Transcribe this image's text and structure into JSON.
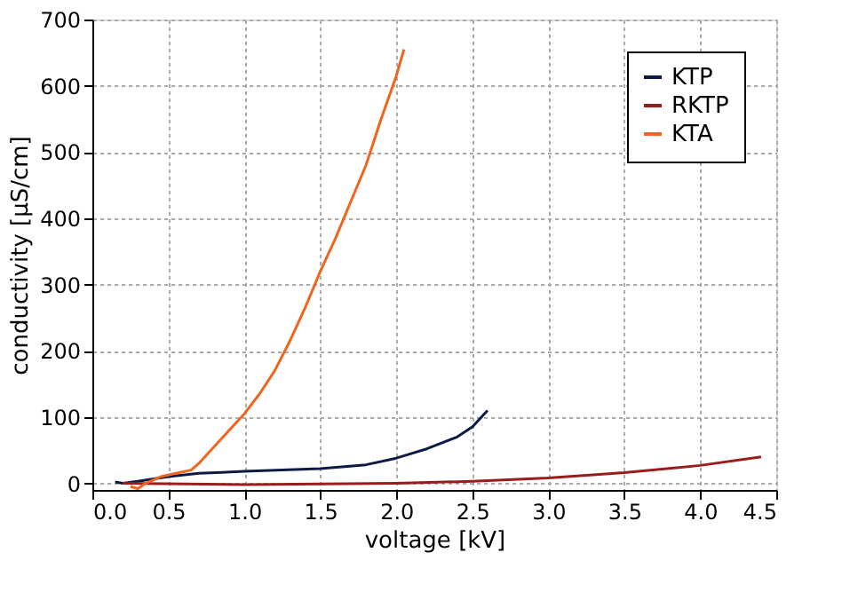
{
  "chart_data": {
    "type": "line",
    "xlabel": "voltage [kV]",
    "ylabel": "conductivity [µS/cm]",
    "xlim": [
      0,
      4.5
    ],
    "xticks": [
      {
        "value": 0,
        "label": "0.0"
      },
      {
        "value": 0.5,
        "label": "0.5"
      },
      {
        "value": 1,
        "label": "1.0"
      },
      {
        "value": 1.5,
        "label": "1.5"
      },
      {
        "value": 2,
        "label": "2.0"
      },
      {
        "value": 2.5,
        "label": "2.5"
      },
      {
        "value": 3,
        "label": "3.0"
      },
      {
        "value": 3.5,
        "label": "3.5"
      },
      {
        "value": 4,
        "label": "4.0"
      },
      {
        "value": 4.5,
        "label": "4.5"
      }
    ],
    "ylim": [
      -10,
      700
    ],
    "yticks": [
      0,
      100,
      200,
      300,
      400,
      500,
      600,
      700
    ],
    "grid": true,
    "legend": "top right",
    "line_style": "solid",
    "series": [
      {
        "name": "KTP",
        "color": "#0d1a45",
        "x": [
          0.15,
          0.2,
          0.3,
          0.5,
          0.7,
          1.0,
          1.5,
          1.8,
          2.0,
          2.2,
          2.4,
          2.5,
          2.6
        ],
        "values": [
          2,
          0,
          3,
          10,
          15,
          18,
          22,
          28,
          38,
          52,
          70,
          85,
          110
        ]
      },
      {
        "name": "RKTP",
        "color": "#9b1c1c",
        "x": [
          0.2,
          1.0,
          2.0,
          2.5,
          3.0,
          3.5,
          4.0,
          4.4
        ],
        "values": [
          0,
          -2,
          0,
          3,
          8,
          16,
          27,
          40
        ]
      },
      {
        "name": "KTA",
        "color": "#f0641e",
        "x": [
          0.25,
          0.3,
          0.35,
          0.45,
          0.55,
          0.65,
          0.7,
          0.8,
          0.9,
          1.0,
          1.1,
          1.2,
          1.3,
          1.4,
          1.5,
          1.6,
          1.7,
          1.8,
          1.9,
          2.0,
          2.05
        ],
        "values": [
          -5,
          -8,
          0,
          10,
          15,
          20,
          30,
          55,
          80,
          105,
          135,
          170,
          215,
          265,
          320,
          370,
          425,
          480,
          550,
          615,
          655
        ]
      }
    ]
  }
}
